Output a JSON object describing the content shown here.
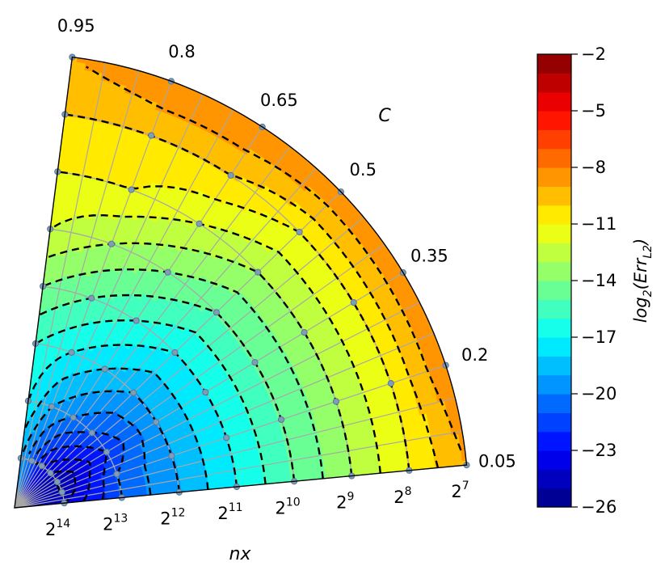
{
  "chart_data": {
    "type": "polar-contour",
    "title": "",
    "radial_axis": {
      "label": "nx",
      "tick_labels": [
        {
          "base": "2",
          "exp": "14"
        },
        {
          "base": "2",
          "exp": "13"
        },
        {
          "base": "2",
          "exp": "12"
        },
        {
          "base": "2",
          "exp": "11"
        },
        {
          "base": "2",
          "exp": "10"
        },
        {
          "base": "2",
          "exp": "9"
        },
        {
          "base": "2",
          "exp": "8"
        },
        {
          "base": "2",
          "exp": "7"
        }
      ],
      "exponents": [
        14,
        13,
        12,
        11,
        10,
        9,
        8,
        7
      ]
    },
    "angular_axis": {
      "label": "C",
      "tick_labels": [
        "0.05",
        "0.2",
        "0.35",
        "0.5",
        "0.65",
        "0.8",
        "0.95"
      ],
      "values": [
        0.05,
        0.2,
        0.35,
        0.5,
        0.65,
        0.8,
        0.95
      ]
    },
    "colorbar": {
      "label_base": "log",
      "label_sub": "2",
      "label_rest": "(Err",
      "label_sub2": "L2",
      "label_close": ")",
      "tick_labels": [
        "−2",
        "−5",
        "−8",
        "−11",
        "−14",
        "−17",
        "−20",
        "−23",
        "−26"
      ],
      "ticks": [
        -2,
        -5,
        -8,
        -11,
        -14,
        -17,
        -20,
        -23,
        -26
      ],
      "range": [
        -26,
        -2
      ],
      "colormap": "jet"
    },
    "grid": true,
    "contour_lines": "dashed black",
    "log2_error_estimate": {
      "description_rows": "rows indexed by C (0.05 to 0.95), columns by nx exponent (14 down to 7)",
      "nx_exponents": [
        14,
        13,
        12,
        11,
        10,
        9,
        8,
        7
      ],
      "C": [
        0.05,
        0.2,
        0.35,
        0.5,
        0.65,
        0.8,
        0.95
      ],
      "values": [
        [
          -24,
          -21,
          -19,
          -17,
          -15,
          -13,
          -11,
          -9
        ],
        [
          -25,
          -21,
          -19,
          -17,
          -15,
          -13,
          -11,
          -8
        ],
        [
          -25,
          -22,
          -19,
          -17,
          -15,
          -13,
          -11,
          -8
        ],
        [
          -24,
          -21,
          -19,
          -17,
          -15,
          -13,
          -11,
          -8
        ],
        [
          -23,
          -20,
          -18,
          -16,
          -14,
          -12,
          -10,
          -8
        ],
        [
          -21,
          -19,
          -17,
          -15,
          -13,
          -11,
          -10,
          -8
        ],
        [
          -19,
          -17,
          -16,
          -14,
          -12,
          -11,
          -10,
          -9
        ]
      ]
    }
  }
}
